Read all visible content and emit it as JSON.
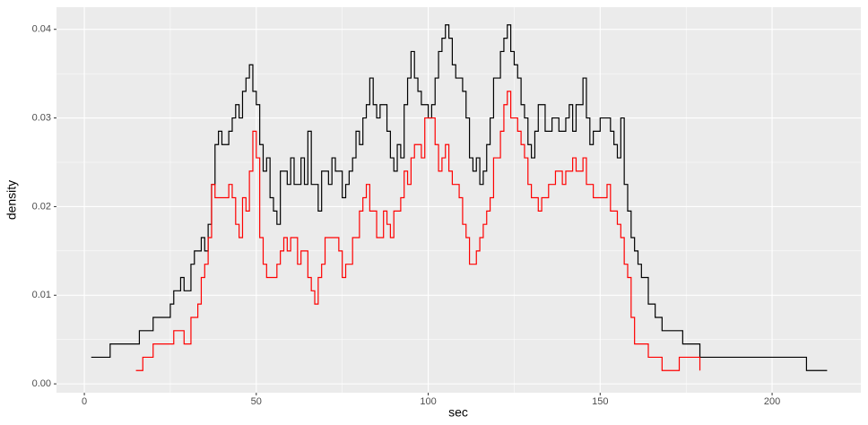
{
  "chart_data": {
    "type": "line",
    "step": true,
    "x_label": "sec",
    "y_label": "density",
    "xlim": [
      -8.1,
      225.8
    ],
    "ylim": [
      -0.001,
      0.0425
    ],
    "xticks": [
      0,
      50,
      100,
      150,
      200
    ],
    "yticks": [
      {
        "value": 0,
        "label": "0.00"
      },
      {
        "value": 0.01,
        "label": "0.01"
      },
      {
        "value": 0.02,
        "label": "0.02"
      },
      {
        "value": 0.03,
        "label": "0.03"
      },
      {
        "value": 0.04,
        "label": "0.04"
      }
    ],
    "x_minor_breaks": [
      25,
      75,
      125,
      175
    ],
    "y_minor_breaks": [
      0.005,
      0.015,
      0.025,
      0.035
    ],
    "grid": true,
    "background": "#ebebeb",
    "series": [
      {
        "color": "#000000",
        "x": [
          2,
          7.5,
          16,
          20,
          25,
          26,
          28,
          29,
          31,
          32,
          34,
          35,
          36,
          37,
          38,
          39,
          40,
          42,
          43,
          44,
          45,
          46,
          47,
          48,
          49,
          50,
          51,
          52,
          53,
          54,
          55,
          56,
          57,
          59,
          60,
          61,
          63,
          64,
          65,
          66,
          68,
          69,
          71,
          72,
          73,
          75,
          76,
          77,
          78,
          79,
          80,
          81,
          82,
          83,
          84,
          85,
          86,
          88,
          89,
          90,
          91,
          92,
          93,
          94,
          95,
          96,
          97,
          98,
          100,
          101,
          102,
          103,
          104,
          105,
          106,
          107,
          108,
          110,
          111,
          112,
          113,
          114,
          115,
          116,
          117,
          118,
          119,
          121,
          122,
          123,
          124,
          125,
          126,
          127,
          128,
          129,
          130,
          131,
          132,
          134,
          136,
          138,
          140,
          141,
          142,
          143,
          145,
          146,
          147,
          148,
          150,
          153,
          154,
          155,
          156,
          157,
          158,
          159,
          160,
          161,
          162,
          164,
          166,
          168,
          174,
          179,
          210,
          216
        ],
        "values": [
          0.003,
          0.0045,
          0.006,
          0.0075,
          0.009,
          0.0105,
          0.012,
          0.0105,
          0.0135,
          0.015,
          0.0165,
          0.015,
          0.018,
          0.0225,
          0.027,
          0.0285,
          0.027,
          0.0285,
          0.03,
          0.0315,
          0.03,
          0.033,
          0.0345,
          0.036,
          0.033,
          0.0315,
          0.027,
          0.024,
          0.0255,
          0.021,
          0.0195,
          0.018,
          0.024,
          0.0225,
          0.0255,
          0.0225,
          0.0255,
          0.0225,
          0.0285,
          0.0225,
          0.0195,
          0.024,
          0.0225,
          0.0255,
          0.024,
          0.021,
          0.0225,
          0.024,
          0.0255,
          0.0285,
          0.027,
          0.03,
          0.0315,
          0.0345,
          0.0315,
          0.03,
          0.0315,
          0.0285,
          0.0255,
          0.024,
          0.027,
          0.0255,
          0.0315,
          0.0345,
          0.0375,
          0.0345,
          0.033,
          0.0315,
          0.03,
          0.0315,
          0.0345,
          0.0375,
          0.039,
          0.0405,
          0.039,
          0.036,
          0.0345,
          0.033,
          0.03,
          0.0255,
          0.024,
          0.0255,
          0.0225,
          0.024,
          0.027,
          0.03,
          0.0345,
          0.0375,
          0.039,
          0.0405,
          0.0375,
          0.036,
          0.0345,
          0.0315,
          0.03,
          0.027,
          0.0255,
          0.0285,
          0.0315,
          0.0285,
          0.03,
          0.0285,
          0.03,
          0.0315,
          0.0285,
          0.0315,
          0.0345,
          0.03,
          0.027,
          0.0285,
          0.03,
          0.0285,
          0.027,
          0.0255,
          0.03,
          0.0225,
          0.0195,
          0.0165,
          0.015,
          0.0135,
          0.012,
          0.009,
          0.0075,
          0.006,
          0.0045,
          0.003,
          0.0015,
          0.0015
        ]
      },
      {
        "color": "#ff0000",
        "x": [
          15,
          17,
          20,
          26,
          29,
          31,
          33,
          34,
          35,
          36,
          37,
          38,
          42,
          43,
          44,
          45,
          46,
          47,
          48,
          49,
          50,
          51,
          52,
          53,
          56,
          57,
          58,
          59,
          60,
          62,
          63,
          65,
          66,
          67,
          68,
          69,
          70,
          74,
          75,
          76,
          78,
          80,
          81,
          82,
          83,
          85,
          87,
          88,
          89,
          90,
          92,
          93,
          94,
          95,
          96,
          98,
          99,
          102,
          103,
          104,
          105,
          106,
          107,
          109,
          110,
          111,
          112,
          114,
          115,
          116,
          117,
          118,
          119,
          121,
          122,
          123,
          124,
          126,
          127,
          128,
          129,
          130,
          132,
          133,
          135,
          137,
          139,
          140,
          142,
          143,
          145,
          146,
          148,
          152,
          153,
          155,
          156,
          157,
          158,
          159,
          160,
          164,
          168,
          173,
          179
        ],
        "values": [
          0.0015,
          0.003,
          0.0045,
          0.006,
          0.0045,
          0.0075,
          0.009,
          0.012,
          0.0135,
          0.0165,
          0.0225,
          0.021,
          0.0225,
          0.021,
          0.018,
          0.0165,
          0.021,
          0.0195,
          0.024,
          0.0285,
          0.0255,
          0.0165,
          0.0135,
          0.012,
          0.0135,
          0.015,
          0.0165,
          0.015,
          0.0165,
          0.0135,
          0.015,
          0.012,
          0.0105,
          0.009,
          0.012,
          0.0135,
          0.0165,
          0.015,
          0.012,
          0.0135,
          0.0165,
          0.0195,
          0.021,
          0.0225,
          0.0195,
          0.0165,
          0.0195,
          0.018,
          0.0165,
          0.0195,
          0.021,
          0.024,
          0.0225,
          0.0255,
          0.027,
          0.0255,
          0.03,
          0.027,
          0.024,
          0.0255,
          0.027,
          0.024,
          0.0225,
          0.021,
          0.018,
          0.0165,
          0.0135,
          0.015,
          0.0165,
          0.018,
          0.0195,
          0.021,
          0.0255,
          0.0285,
          0.0315,
          0.033,
          0.03,
          0.0285,
          0.027,
          0.0255,
          0.0225,
          0.021,
          0.0195,
          0.021,
          0.0225,
          0.024,
          0.0225,
          0.024,
          0.0255,
          0.024,
          0.0255,
          0.0225,
          0.021,
          0.0225,
          0.0195,
          0.018,
          0.0165,
          0.0135,
          0.012,
          0.0075,
          0.0045,
          0.003,
          0.0015,
          0.003,
          0.0015
        ]
      }
    ]
  }
}
